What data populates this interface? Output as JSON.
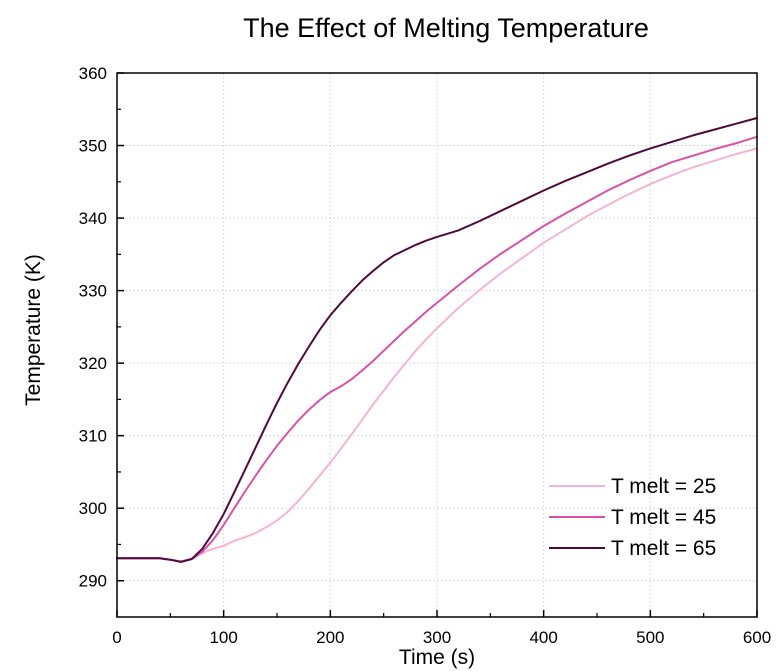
{
  "chart_data": {
    "type": "line",
    "title": "The Effect of Melting Temperature",
    "xlabel": "Time (s)",
    "ylabel": "Temperature (K)",
    "xlim": [
      0,
      600
    ],
    "ylim": [
      285,
      360
    ],
    "xticks": [
      0,
      100,
      200,
      300,
      400,
      500,
      600
    ],
    "yticks": [
      290,
      300,
      310,
      320,
      330,
      340,
      350,
      360
    ],
    "grid": true,
    "legend_position": "bottom-right",
    "series": [
      {
        "name": "T melt = 25",
        "color": "#f4b4d6",
        "points": [
          [
            0,
            293.1
          ],
          [
            20,
            293.1
          ],
          [
            40,
            293.1
          ],
          [
            50,
            292.9
          ],
          [
            60,
            292.7
          ],
          [
            70,
            293.0
          ],
          [
            80,
            293.8
          ],
          [
            90,
            294.4
          ],
          [
            100,
            294.8
          ],
          [
            110,
            295.5
          ],
          [
            120,
            296.0
          ],
          [
            130,
            296.6
          ],
          [
            140,
            297.4
          ],
          [
            150,
            298.3
          ],
          [
            160,
            299.5
          ],
          [
            170,
            301.0
          ],
          [
            180,
            302.7
          ],
          [
            190,
            304.5
          ],
          [
            200,
            306.3
          ],
          [
            210,
            308.2
          ],
          [
            220,
            310.2
          ],
          [
            230,
            312.2
          ],
          [
            240,
            314.3
          ],
          [
            250,
            316.2
          ],
          [
            260,
            318.1
          ],
          [
            270,
            319.9
          ],
          [
            280,
            321.7
          ],
          [
            290,
            323.3
          ],
          [
            300,
            324.8
          ],
          [
            320,
            327.6
          ],
          [
            340,
            330.1
          ],
          [
            360,
            332.4
          ],
          [
            380,
            334.5
          ],
          [
            400,
            336.6
          ],
          [
            420,
            338.4
          ],
          [
            440,
            340.2
          ],
          [
            460,
            341.8
          ],
          [
            480,
            343.3
          ],
          [
            500,
            344.7
          ],
          [
            520,
            345.9
          ],
          [
            540,
            347.0
          ],
          [
            560,
            347.9
          ],
          [
            580,
            348.8
          ],
          [
            600,
            349.6
          ]
        ]
      },
      {
        "name": "T melt = 45",
        "color": "#d852a6",
        "points": [
          [
            0,
            293.1
          ],
          [
            20,
            293.1
          ],
          [
            40,
            293.1
          ],
          [
            50,
            292.9
          ],
          [
            60,
            292.6
          ],
          [
            70,
            293.0
          ],
          [
            80,
            294.0
          ],
          [
            90,
            295.6
          ],
          [
            100,
            297.7
          ],
          [
            110,
            300.0
          ],
          [
            120,
            302.3
          ],
          [
            130,
            304.5
          ],
          [
            140,
            306.6
          ],
          [
            150,
            308.6
          ],
          [
            160,
            310.4
          ],
          [
            170,
            312.1
          ],
          [
            180,
            313.6
          ],
          [
            190,
            314.9
          ],
          [
            200,
            316.0
          ],
          [
            210,
            316.8
          ],
          [
            220,
            317.8
          ],
          [
            230,
            319.0
          ],
          [
            240,
            320.3
          ],
          [
            250,
            321.7
          ],
          [
            260,
            323.1
          ],
          [
            270,
            324.5
          ],
          [
            280,
            325.8
          ],
          [
            290,
            327.1
          ],
          [
            300,
            328.3
          ],
          [
            320,
            330.7
          ],
          [
            340,
            333.0
          ],
          [
            360,
            335.1
          ],
          [
            380,
            337.0
          ],
          [
            400,
            338.9
          ],
          [
            420,
            340.6
          ],
          [
            440,
            342.2
          ],
          [
            460,
            343.8
          ],
          [
            480,
            345.2
          ],
          [
            500,
            346.5
          ],
          [
            520,
            347.7
          ],
          [
            540,
            348.6
          ],
          [
            560,
            349.5
          ],
          [
            580,
            350.3
          ],
          [
            600,
            351.2
          ]
        ]
      },
      {
        "name": "T melt = 65",
        "color": "#4f0a3c",
        "points": [
          [
            0,
            293.1
          ],
          [
            20,
            293.1
          ],
          [
            40,
            293.1
          ],
          [
            50,
            292.9
          ],
          [
            60,
            292.6
          ],
          [
            70,
            293.0
          ],
          [
            80,
            294.4
          ],
          [
            90,
            296.6
          ],
          [
            100,
            299.2
          ],
          [
            110,
            302.2
          ],
          [
            120,
            305.3
          ],
          [
            130,
            308.4
          ],
          [
            140,
            311.5
          ],
          [
            150,
            314.5
          ],
          [
            160,
            317.3
          ],
          [
            170,
            319.9
          ],
          [
            180,
            322.3
          ],
          [
            190,
            324.6
          ],
          [
            200,
            326.6
          ],
          [
            210,
            328.3
          ],
          [
            220,
            329.9
          ],
          [
            230,
            331.4
          ],
          [
            240,
            332.7
          ],
          [
            250,
            333.9
          ],
          [
            260,
            334.9
          ],
          [
            270,
            335.6
          ],
          [
            280,
            336.3
          ],
          [
            290,
            336.9
          ],
          [
            300,
            337.4
          ],
          [
            320,
            338.3
          ],
          [
            340,
            339.6
          ],
          [
            360,
            341.0
          ],
          [
            380,
            342.4
          ],
          [
            400,
            343.8
          ],
          [
            420,
            345.1
          ],
          [
            440,
            346.3
          ],
          [
            460,
            347.5
          ],
          [
            480,
            348.6
          ],
          [
            500,
            349.6
          ],
          [
            520,
            350.5
          ],
          [
            540,
            351.4
          ],
          [
            560,
            352.2
          ],
          [
            580,
            353.0
          ],
          [
            600,
            353.8
          ]
        ]
      }
    ]
  }
}
